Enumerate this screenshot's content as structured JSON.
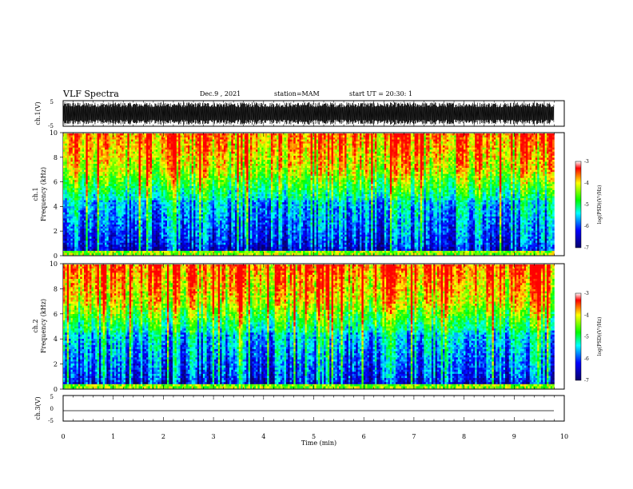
{
  "header": {
    "title": "VLF Spectra",
    "date": "Dec.9 , 2021",
    "station": "station=MAM",
    "start": "start UT = 20:30: 1"
  },
  "chart_data": [
    {
      "type": "line",
      "panel": "waveform-ch1",
      "ylabel": "ch.1(V)",
      "ylim": [
        -5,
        5
      ],
      "yticks": [
        "5",
        "-5"
      ],
      "xlim": [
        0,
        10
      ],
      "series": [
        {
          "values": "dense noise ~ -4.5 to 4.5 V over 0–9.8 min"
        }
      ]
    },
    {
      "type": "heatmap",
      "panel": "spectrogram-ch1",
      "ylabel": "ch.1 Frequency (kHz)",
      "ylim": [
        0,
        10
      ],
      "yticks": [
        "0",
        "2",
        "4",
        "6",
        "8",
        "10"
      ],
      "xlim": [
        0,
        10
      ],
      "colorbar": {
        "label": "log(PSD)(V²/Hz)",
        "range": [
          -7,
          -3
        ],
        "ticks": [
          "-3",
          "-4",
          "-5",
          "-6",
          "-7"
        ]
      }
    },
    {
      "type": "heatmap",
      "panel": "spectrogram-ch2",
      "ylabel": "ch.2 Frequency (kHz)",
      "ylim": [
        0,
        10
      ],
      "yticks": [
        "0",
        "2",
        "4",
        "6",
        "8",
        "10"
      ],
      "xlim": [
        0,
        10
      ],
      "colorbar": {
        "label": "log(PSD)(V²/Hz)",
        "range": [
          -7,
          -3
        ],
        "ticks": [
          "-3",
          "-4",
          "-5",
          "-6",
          "-7"
        ]
      }
    },
    {
      "type": "line",
      "panel": "waveform-ch3",
      "ylabel": "ch.3(V)",
      "ylim": [
        -5,
        5
      ],
      "yticks": [
        "5",
        "0",
        "-5"
      ],
      "xlim": [
        0,
        10
      ],
      "series": [
        {
          "values": "flat at about -1.7 V over 0–9.8 min"
        }
      ]
    }
  ],
  "x_axis": {
    "label": "Time (min)",
    "ticks": [
      "0",
      "1",
      "2",
      "3",
      "4",
      "5",
      "6",
      "7",
      "8",
      "9",
      "10"
    ],
    "data_end": 9.8
  },
  "colors": {
    "colormap": [
      "#08006a",
      "#0000ff",
      "#00ffff",
      "#00ff00",
      "#ffff00",
      "#ff0000"
    ],
    "waveform": "#000000"
  }
}
